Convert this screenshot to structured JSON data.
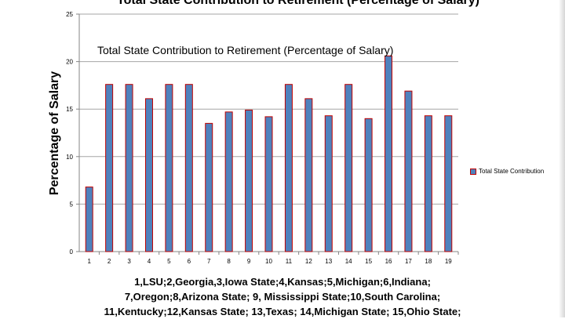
{
  "page_title": "Total State Contribution to Retirement (Percentage of Salary)",
  "caption_lines": [
    "1,LSU;2,Georgia,3,Iowa State;4,Kansas;5,Michigan;6,Indiana;",
    "7,Oregon;8,Arizona State; 9, Mississippi State;10,South Carolina;",
    "11,Kentucky;12,Kansas State; 13,Texas; 14,Michigan State; 15,Ohio State;"
  ],
  "colors": {
    "bar_fill": "#4f81bd",
    "bar_border": "#c00000",
    "grid": "#a6a6a6"
  },
  "chart_data": {
    "type": "bar",
    "title": "Total State Contribution to Retirement (Percentage of Salary)",
    "xlabel": "",
    "ylabel": "Percentage of Salary",
    "categories": [
      "1",
      "2",
      "3",
      "4",
      "5",
      "6",
      "7",
      "8",
      "9",
      "10",
      "11",
      "12",
      "13",
      "14",
      "15",
      "16",
      "17",
      "18",
      "19"
    ],
    "series": [
      {
        "name": "Total State Contribution",
        "values": [
          6.8,
          17.6,
          17.6,
          16.1,
          17.6,
          17.6,
          13.5,
          14.7,
          14.9,
          14.2,
          17.6,
          16.1,
          14.3,
          17.6,
          14.0,
          20.6,
          16.9,
          14.3,
          14.3
        ]
      }
    ],
    "ylim": [
      0,
      25
    ],
    "yticks": [
      0,
      5,
      10,
      15,
      20,
      25
    ],
    "grid": true,
    "legend": "right"
  }
}
